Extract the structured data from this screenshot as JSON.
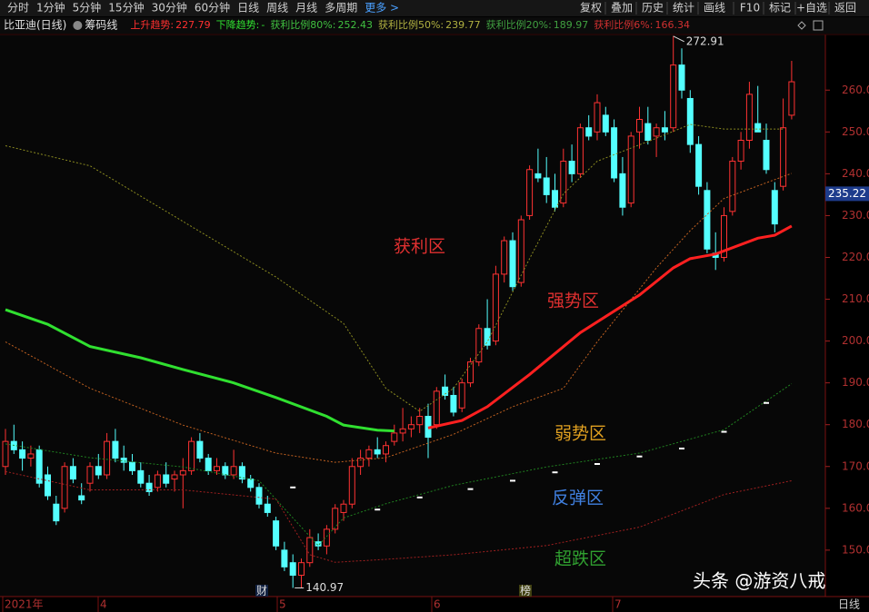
{
  "toolbar": {
    "left": [
      "分时",
      "1分钟",
      "5分钟",
      "15分钟",
      "30分钟",
      "60分钟",
      "日线",
      "周线",
      "月线",
      "多周期",
      "更多 >"
    ],
    "right": [
      "复权",
      "叠加",
      "历史",
      "统计",
      "画线",
      "F10",
      "标记",
      "+自选",
      "返回"
    ]
  },
  "info": {
    "stock": "比亚迪(日线)",
    "indicator": "筹码线",
    "items": [
      {
        "label": "上升趋势:",
        "value": 227.79,
        "color": "#ff3030"
      },
      {
        "label": "下降趋势:",
        "value": "-",
        "color": "#30e030"
      },
      {
        "label": "获利比例80%:",
        "value": 252.43,
        "color": "#40c040"
      },
      {
        "label": "获利比例50%:",
        "value": 239.77,
        "color": "#b0b040"
      },
      {
        "label": "获利比例20%:",
        "value": 189.97,
        "color": "#40a040"
      },
      {
        "label": "获利比例6%:",
        "value": 166.34,
        "color": "#d03030"
      }
    ]
  },
  "chart_data": {
    "type": "candlestick",
    "ylim": [
      138.9,
      273.3
    ],
    "yticks": [
      {
        "value": 150,
        "label": "150.0"
      },
      {
        "value": 160,
        "label": "160.0"
      },
      {
        "value": 170,
        "label": "170.0"
      },
      {
        "value": 180,
        "label": "180.0"
      },
      {
        "value": 190,
        "label": "190.0"
      },
      {
        "value": 200,
        "label": "200.0"
      },
      {
        "value": 210,
        "label": "210.0"
      },
      {
        "value": 220,
        "label": "220.0"
      },
      {
        "value": 230,
        "label": "230.0"
      },
      {
        "value": 240,
        "label": "240.0"
      },
      {
        "value": 250,
        "label": "250.0"
      },
      {
        "value": 260,
        "label": "260.0"
      }
    ],
    "up_color": "#ff3232",
    "down_color": "#54ffff",
    "candles": [
      [
        170,
        179,
        168,
        176
      ],
      [
        176,
        180,
        173,
        174
      ],
      [
        174,
        176,
        169,
        172
      ],
      [
        172,
        175,
        170,
        173
      ],
      [
        174,
        175,
        165,
        166
      ],
      [
        168,
        170,
        162,
        163
      ],
      [
        161,
        163,
        156,
        157
      ],
      [
        160,
        171,
        159,
        170
      ],
      [
        170,
        172,
        166,
        167
      ],
      [
        163,
        166,
        161,
        162
      ],
      [
        166,
        171,
        164,
        170
      ],
      [
        170,
        173,
        167,
        168
      ],
      [
        168,
        178,
        167,
        176
      ],
      [
        176,
        179,
        171,
        172
      ],
      [
        172,
        175,
        169,
        171
      ],
      [
        171,
        173,
        168,
        169
      ],
      [
        169,
        171,
        165,
        166
      ],
      [
        166,
        168,
        163,
        164
      ],
      [
        165,
        169,
        164,
        168
      ],
      [
        168,
        171,
        165,
        166
      ],
      [
        167,
        169,
        164,
        168
      ],
      [
        168,
        172,
        160,
        169
      ],
      [
        169,
        177,
        168,
        176
      ],
      [
        176,
        178,
        171,
        172
      ],
      [
        172,
        173,
        168,
        169
      ],
      [
        169,
        172,
        168,
        170
      ],
      [
        170,
        171,
        167,
        168
      ],
      [
        168,
        174,
        167,
        170
      ],
      [
        170,
        171,
        166,
        167
      ],
      [
        167,
        168,
        164,
        165
      ],
      [
        165,
        166,
        160,
        161
      ],
      [
        161,
        163,
        158,
        159
      ],
      [
        157,
        158,
        150,
        151
      ],
      [
        150,
        152,
        145,
        146
      ],
      [
        147,
        149,
        140.97,
        144
      ],
      [
        144,
        148,
        141,
        147
      ],
      [
        147,
        155,
        146,
        153
      ],
      [
        152,
        154,
        150,
        151
      ],
      [
        151,
        156,
        149,
        155
      ],
      [
        155,
        161,
        154,
        160
      ],
      [
        159,
        162,
        157,
        161
      ],
      [
        161,
        172,
        160,
        170
      ],
      [
        170,
        174,
        168,
        172
      ],
      [
        172,
        175,
        170,
        174
      ],
      [
        174,
        177,
        172,
        173
      ],
      [
        173,
        176,
        171,
        175
      ],
      [
        176,
        180,
        175,
        178
      ],
      [
        178,
        184,
        176,
        179
      ],
      [
        179,
        182,
        177,
        180
      ],
      [
        180,
        184,
        178,
        182
      ],
      [
        182,
        185,
        172,
        177
      ],
      [
        180,
        189,
        179,
        188
      ],
      [
        189,
        192,
        186,
        187
      ],
      [
        187,
        189,
        182,
        183
      ],
      [
        184,
        191,
        183,
        190
      ],
      [
        190,
        196,
        189,
        195
      ],
      [
        195,
        204,
        194,
        203
      ],
      [
        203,
        210,
        198,
        199
      ],
      [
        200,
        218,
        199,
        216
      ],
      [
        216,
        225,
        214,
        224
      ],
      [
        224,
        226,
        212,
        213
      ],
      [
        214,
        230,
        213,
        229
      ],
      [
        230,
        242,
        229,
        241
      ],
      [
        240,
        246,
        238,
        239
      ],
      [
        239,
        244,
        233,
        235
      ],
      [
        236,
        240,
        231,
        232
      ],
      [
        233,
        246,
        232,
        243
      ],
      [
        243,
        247,
        238,
        240
      ],
      [
        240,
        252,
        239,
        251
      ],
      [
        251,
        254,
        248,
        249
      ],
      [
        250,
        259,
        248,
        257
      ],
      [
        254,
        256,
        249,
        250
      ],
      [
        251,
        253,
        238,
        239
      ],
      [
        240,
        244,
        230,
        232
      ],
      [
        233,
        250,
        232,
        249
      ],
      [
        250,
        256,
        246,
        253
      ],
      [
        252,
        256,
        247,
        248
      ],
      [
        249,
        252,
        244,
        251
      ],
      [
        251,
        255,
        248,
        250
      ],
      [
        251,
        272.91,
        250,
        266
      ],
      [
        266,
        270,
        258,
        260
      ],
      [
        258,
        260,
        245,
        247
      ],
      [
        247,
        249,
        235,
        237
      ],
      [
        236,
        238,
        221,
        222
      ],
      [
        221,
        226,
        217,
        220
      ],
      [
        220,
        232,
        219,
        230
      ],
      [
        231,
        244,
        230,
        243
      ],
      [
        243,
        250,
        241,
        248
      ],
      [
        248,
        262,
        246,
        259
      ],
      [
        252,
        261,
        250,
        250
      ],
      [
        248,
        252,
        240,
        241
      ],
      [
        236,
        238,
        226,
        228
      ],
      [
        237,
        258,
        236,
        251
      ],
      [
        254,
        267,
        253,
        262
      ]
    ],
    "lines": [
      {
        "color": "#30e030",
        "width": 3,
        "x": [
          0,
          5,
          10,
          16,
          21,
          27,
          32,
          38,
          40,
          44,
          46
        ],
        "values": [
          207.5,
          204,
          198.7,
          196,
          193.2,
          190,
          186.5,
          182,
          179.9,
          178.7,
          178.5
        ]
      },
      {
        "color": "#ff2020",
        "width": 3,
        "x": [
          50,
          54,
          57,
          62,
          68,
          75,
          79,
          81,
          84,
          89,
          91,
          93
        ],
        "values": [
          179.2,
          181,
          184.3,
          192,
          202,
          211,
          217.5,
          219.7,
          220.8,
          224.6,
          225.3,
          227.5
        ]
      },
      {
        "color": "#8a8a20",
        "width": 1,
        "x": [
          0,
          10,
          21,
          32,
          40,
          45,
          49,
          53,
          57,
          62,
          66,
          70,
          77,
          81,
          85,
          92
        ],
        "values": [
          246.7,
          241.9,
          228.6,
          215.3,
          204.2,
          188.7,
          183.2,
          188.7,
          199.8,
          219.7,
          235.2,
          243,
          248.5,
          251.8,
          250.7,
          250.7
        ]
      },
      {
        "color": "#c06020",
        "width": 1,
        "x": [
          0,
          10,
          21,
          32,
          39,
          45,
          53,
          60,
          66,
          70,
          77,
          81,
          85,
          93
        ],
        "values": [
          199.8,
          188.7,
          179.9,
          173.2,
          171,
          172.1,
          177.7,
          184.3,
          188.7,
          199.8,
          217.5,
          226.4,
          234.1,
          240.1
        ]
      },
      {
        "color": "#208020",
        "width": 1,
        "x": [
          0,
          10,
          21,
          30,
          34,
          37,
          40,
          45,
          53,
          64,
          75,
          85,
          93
        ],
        "values": [
          175.4,
          172.1,
          169.9,
          166.6,
          157.7,
          151.1,
          157.7,
          161.1,
          165.5,
          169.9,
          173.2,
          178.8,
          189.8
        ]
      },
      {
        "color": "#a02020",
        "width": 1,
        "x": [
          0,
          10,
          21,
          32,
          36,
          39,
          45,
          53,
          64,
          75,
          85,
          93
        ],
        "values": [
          168.8,
          164.4,
          164.4,
          162.2,
          148.9,
          147.1,
          147.8,
          148.9,
          151.1,
          155.5,
          163.3,
          166.6
        ]
      }
    ],
    "markers": {
      "x": [
        34,
        44,
        49,
        55,
        60,
        65,
        70,
        75,
        80,
        85,
        90
      ],
      "values": [
        165,
        159.7,
        162.6,
        164.6,
        166.6,
        168.6,
        170.6,
        172.4,
        174.3,
        178.3,
        185.2
      ]
    },
    "high_label": {
      "index": 79,
      "value": 272.91
    },
    "low_label": {
      "index": 34,
      "value": 140.97
    },
    "last_price": 235.22,
    "zones": [
      {
        "text": "获利区",
        "color": "#e03030"
      },
      {
        "text": "强势区",
        "color": "#e03030"
      },
      {
        "text": "弱势区",
        "color": "#e0a020"
      },
      {
        "text": "反弹区",
        "color": "#4080e0"
      },
      {
        "text": "超跌区",
        "color": "#30a030"
      }
    ],
    "events": [
      "财",
      "榜"
    ],
    "months": [
      "2021年",
      "4",
      "5",
      "6",
      "7"
    ],
    "period": "日线"
  },
  "watermark": "头条 @游资八戒"
}
